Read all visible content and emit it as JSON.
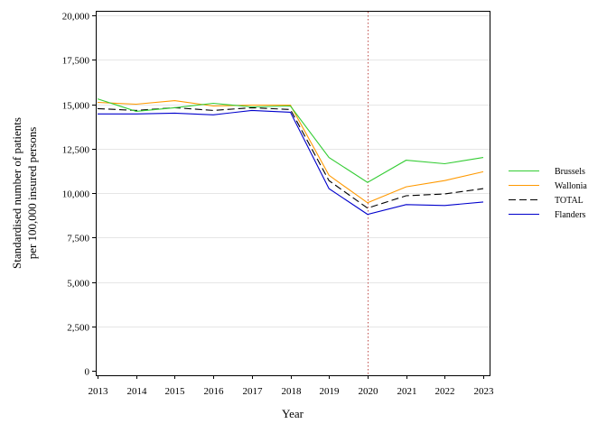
{
  "chart_data": {
    "type": "line",
    "title": "",
    "xlabel": "Year",
    "ylabel_lines": [
      "Standardised number of patients",
      "per 100,000 insured persons"
    ],
    "x": [
      2013,
      2014,
      2015,
      2016,
      2017,
      2018,
      2019,
      2020,
      2021,
      2022,
      2023
    ],
    "x_tick_labels": [
      "2013",
      "2014",
      "2015",
      "2016",
      "2017",
      "2018",
      "2019",
      "2020",
      "2021",
      "2022",
      "2023"
    ],
    "y_ticks": [
      0,
      2500,
      5000,
      7500,
      10000,
      12500,
      15000,
      17500,
      20000
    ],
    "y_tick_labels": [
      "0",
      "2,500",
      "5,000",
      "7,500",
      "10,000",
      "12,500",
      "15,000",
      "17,500",
      "20,000"
    ],
    "ylim": [
      0,
      20000
    ],
    "xlim": [
      2013,
      2023
    ],
    "grid": "horizontal",
    "legend_position": "right",
    "reference_line": {
      "x": 2020,
      "color": "#c0504d",
      "style": "dotted"
    },
    "series": [
      {
        "name": "Brussels",
        "color": "#33cc33",
        "dash": "solid",
        "values": [
          15300,
          14600,
          14800,
          15050,
          14850,
          14900,
          12000,
          10600,
          11850,
          11650,
          12000
        ]
      },
      {
        "name": "Wallonia",
        "color": "#ff9900",
        "dash": "solid",
        "values": [
          15100,
          15000,
          15200,
          14900,
          14950,
          14950,
          11000,
          9450,
          10350,
          10700,
          11200
        ]
      },
      {
        "name": "TOTAL",
        "color": "#000000",
        "dash": "dashed",
        "values": [
          14750,
          14650,
          14800,
          14650,
          14800,
          14700,
          10700,
          9150,
          9850,
          9950,
          10250
        ]
      },
      {
        "name": "Flanders",
        "color": "#0000cc",
        "dash": "solid",
        "values": [
          14450,
          14450,
          14500,
          14400,
          14650,
          14550,
          10250,
          8800,
          9350,
          9300,
          9500
        ]
      }
    ]
  }
}
